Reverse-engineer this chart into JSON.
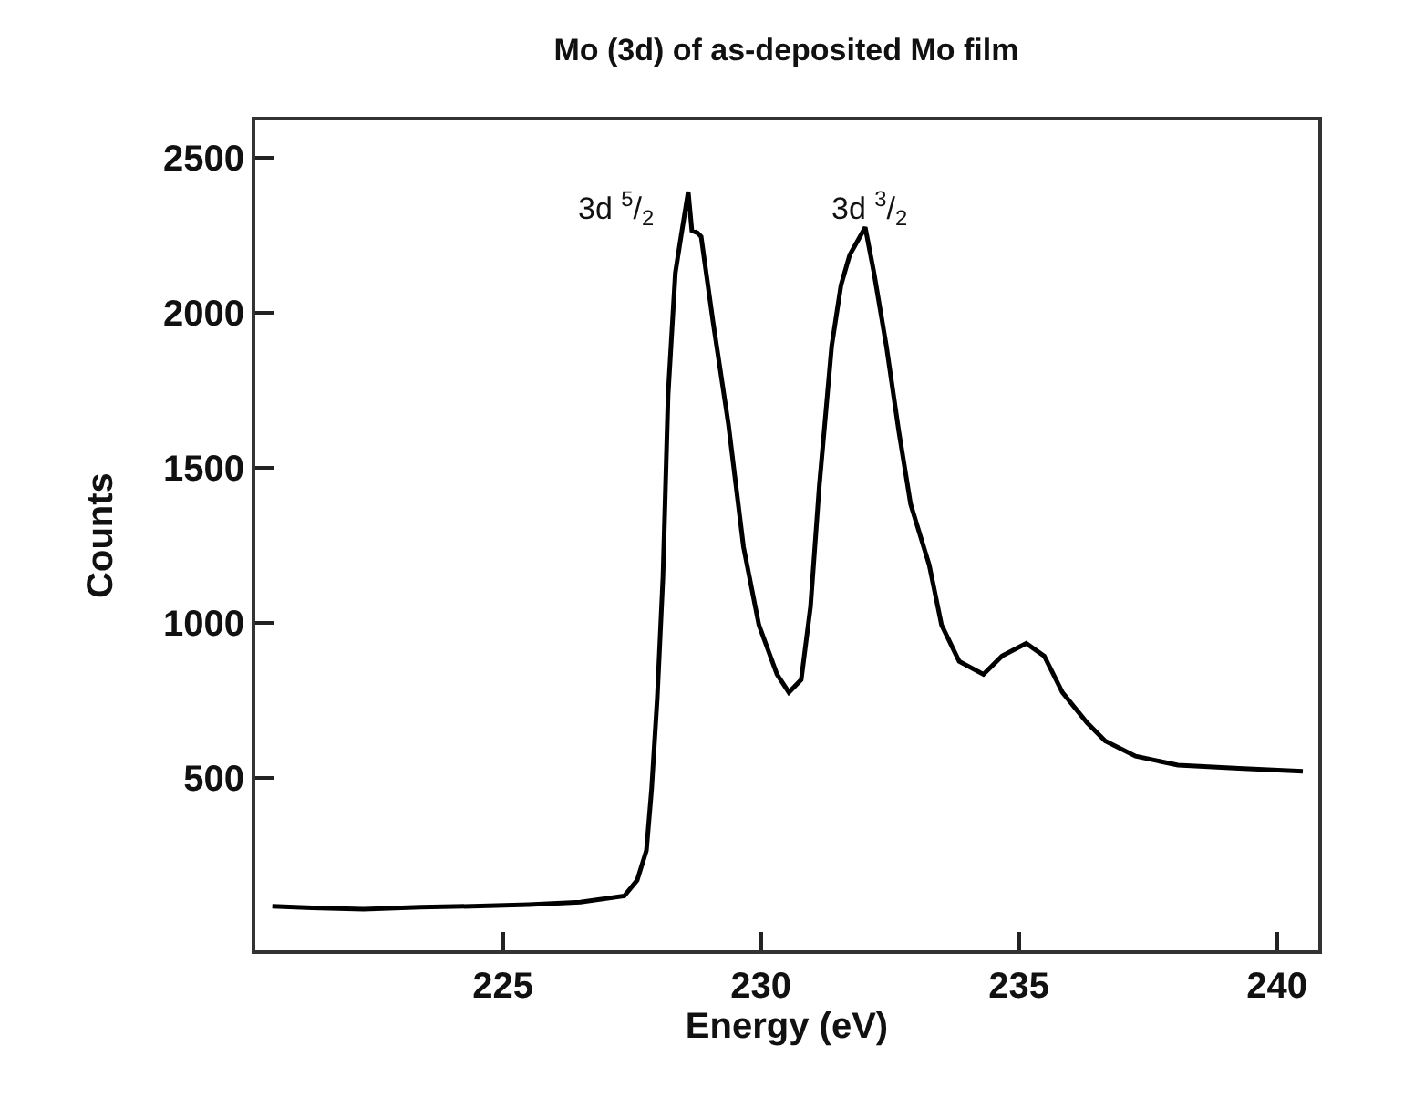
{
  "chart_data": {
    "type": "line",
    "title": "Mo (3d) of as-deposited Mo film",
    "xlabel": "Energy (eV)",
    "ylabel": "Counts",
    "x": [
      220.53,
      221.3,
      222.3,
      223.4,
      224.4,
      225.5,
      226.5,
      227.35,
      227.6,
      227.78,
      227.88,
      227.99,
      228.1,
      228.2,
      228.34,
      228.45,
      228.59,
      228.66,
      228.77,
      228.84,
      229.07,
      229.37,
      229.66,
      229.96,
      230.31,
      230.54,
      230.78,
      230.96,
      231.13,
      231.37,
      231.55,
      231.72,
      232.02,
      232.19,
      232.43,
      232.67,
      232.9,
      233.26,
      233.5,
      233.84,
      234.31,
      234.67,
      235.14,
      235.49,
      235.84,
      236.32,
      236.67,
      237.26,
      238.08,
      239.26,
      240.5
    ],
    "series": [
      {
        "color": "#000000",
        "values": [
          85,
          80,
          75,
          82,
          85,
          90,
          98,
          118,
          169,
          265,
          463,
          757,
          1147,
          1735,
          2128,
          2245,
          2390,
          2265,
          2257,
          2245,
          1971,
          1639,
          1245,
          992,
          833,
          775,
          816,
          1051,
          1441,
          1892,
          2088,
          2186,
          2275,
          2128,
          1892,
          1618,
          1382,
          1186,
          992,
          875,
          833,
          892,
          933,
          892,
          775,
          677,
          618,
          569,
          540,
          530,
          520
        ]
      }
    ],
    "annotations": [
      "3d $^{5}$/$_{2}$",
      "3d $^{3}$/$_{2}$"
    ],
    "xlim": [
      220.2,
      240.8
    ],
    "xticks": [
      225,
      230,
      235,
      240
    ],
    "ylim": [
      -57,
      2620
    ],
    "yticks": [
      500,
      1000,
      1500,
      2000,
      2500
    ],
    "grid": false,
    "marker": "none",
    "line_style": "solid"
  }
}
